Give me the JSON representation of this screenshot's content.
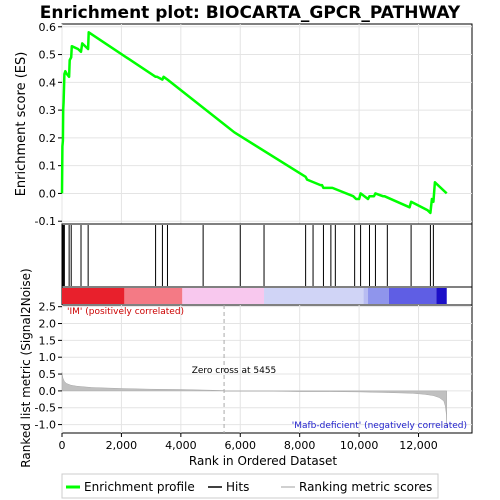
{
  "chart_data": [
    {
      "type": "line",
      "title": "Enrichment plot: BIOCARTA_GPCR_PATHWAY",
      "ylabel": "Enrichment score (ES)",
      "xlim": [
        0,
        13800
      ],
      "ylim": [
        -0.11,
        0.61
      ],
      "yticks": [
        -0.1,
        0.0,
        0.1,
        0.2,
        0.3,
        0.4,
        0.5,
        0.6
      ],
      "ytick_labels": [
        "-0.1",
        "0.0",
        "0.1",
        "0.2",
        "0.3",
        "0.4",
        "0.5",
        "0.6"
      ],
      "grid": true,
      "series": [
        {
          "name": "Enrichment profile",
          "color": "#00ff00",
          "x": [
            0,
            15,
            30,
            40,
            55,
            80,
            110,
            160,
            240,
            260,
            310,
            330,
            540,
            640,
            680,
            880,
            900,
            3150,
            3200,
            3380,
            3420,
            3550,
            5800,
            8200,
            8250,
            8700,
            8750,
            8800,
            8900,
            9050,
            9100,
            9800,
            9900,
            9950,
            10000,
            10050,
            10300,
            10350,
            10500,
            10550,
            10800,
            10850,
            11700,
            11750,
            12300,
            12400,
            12450,
            12500,
            12550,
            12950
          ],
          "y": [
            0.0,
            0.17,
            0.19,
            0.3,
            0.33,
            0.43,
            0.44,
            0.43,
            0.42,
            0.48,
            0.49,
            0.53,
            0.52,
            0.51,
            0.54,
            0.52,
            0.58,
            0.42,
            0.42,
            0.41,
            0.42,
            0.41,
            0.22,
            0.06,
            0.05,
            0.03,
            0.03,
            0.02,
            0.02,
            0.02,
            0.02,
            -0.01,
            -0.02,
            -0.02,
            -0.02,
            0.0,
            -0.02,
            -0.01,
            -0.01,
            0.0,
            -0.01,
            -0.01,
            -0.05,
            -0.03,
            -0.06,
            -0.07,
            -0.02,
            -0.03,
            0.04,
            0.0
          ]
        }
      ]
    },
    {
      "type": "scatter",
      "title": "",
      "legend_label": "Hits",
      "color": "#000000",
      "hits": [
        15,
        30,
        55,
        80,
        240,
        310,
        640,
        880,
        3150,
        3380,
        3550,
        4750,
        6000,
        6800,
        8200,
        8450,
        8800,
        9050,
        9200,
        9850,
        10050,
        10350,
        10550,
        10950,
        11750,
        12400,
        12500
      ]
    },
    {
      "type": "heatmap",
      "title": "",
      "segments": [
        {
          "from": 0,
          "to": 2100,
          "color": "#e8202c"
        },
        {
          "from": 2100,
          "to": 4050,
          "color": "#f47a85"
        },
        {
          "from": 4050,
          "to": 6800,
          "color": "#f8c8ee"
        },
        {
          "from": 6800,
          "to": 10150,
          "color": "#d0d4f6"
        },
        {
          "from": 10150,
          "to": 10300,
          "color": "#b8bcf2"
        },
        {
          "from": 10300,
          "to": 11000,
          "color": "#8f95ec"
        },
        {
          "from": 11000,
          "to": 12600,
          "color": "#5f5ee4"
        },
        {
          "from": 12600,
          "to": 12950,
          "color": "#1c10c8"
        }
      ]
    },
    {
      "type": "area",
      "title": "",
      "xlabel": "Rank in Ordered Dataset",
      "ylabel": "Ranked list metric (Signal2Noise)",
      "ylim": [
        -1.25,
        2.55
      ],
      "yticks": [
        -1.0,
        -0.5,
        0.0,
        0.5,
        1.0,
        1.5,
        2.0,
        2.5
      ],
      "ytick_labels": [
        "-1.0",
        "-0.5",
        "0.0",
        "0.5",
        "1.0",
        "1.5",
        "2.0",
        "2.5"
      ],
      "xticks": [
        0,
        2000,
        4000,
        6000,
        8000,
        10000,
        12000
      ],
      "xtick_labels": [
        "0",
        "2,000",
        "4,000",
        "6,000",
        "8,000",
        "10,000",
        "12,000"
      ],
      "grid": true,
      "color": "#c0c0c0",
      "x": [
        0,
        30,
        80,
        150,
        300,
        500,
        1000,
        2000,
        3000,
        4000,
        5000,
        5454,
        5456,
        6000,
        7000,
        8000,
        9000,
        10000,
        11000,
        11800,
        12200,
        12500,
        12700,
        12850,
        12900,
        12940,
        12950
      ],
      "y": [
        0.55,
        0.38,
        0.28,
        0.22,
        0.17,
        0.14,
        0.1,
        0.07,
        0.05,
        0.04,
        0.02,
        0.01,
        -0.01,
        -0.01,
        -0.01,
        -0.02,
        -0.02,
        -0.03,
        -0.05,
        -0.07,
        -0.1,
        -0.14,
        -0.2,
        -0.3,
        -0.45,
        -0.7,
        -1.05
      ],
      "zero_cross_rank": 5455,
      "zero_cross_label": "Zero cross at 5455",
      "positive_label": "'IM' (positively correlated)",
      "negative_label": "'Mafb-deficient' (negatively correlated)"
    }
  ],
  "legend": {
    "items": [
      {
        "label": "Enrichment profile",
        "color": "#00ff00"
      },
      {
        "label": "Hits",
        "color": "#000000"
      },
      {
        "label": "Ranking metric scores",
        "color": "#c0c0c0"
      }
    ]
  }
}
